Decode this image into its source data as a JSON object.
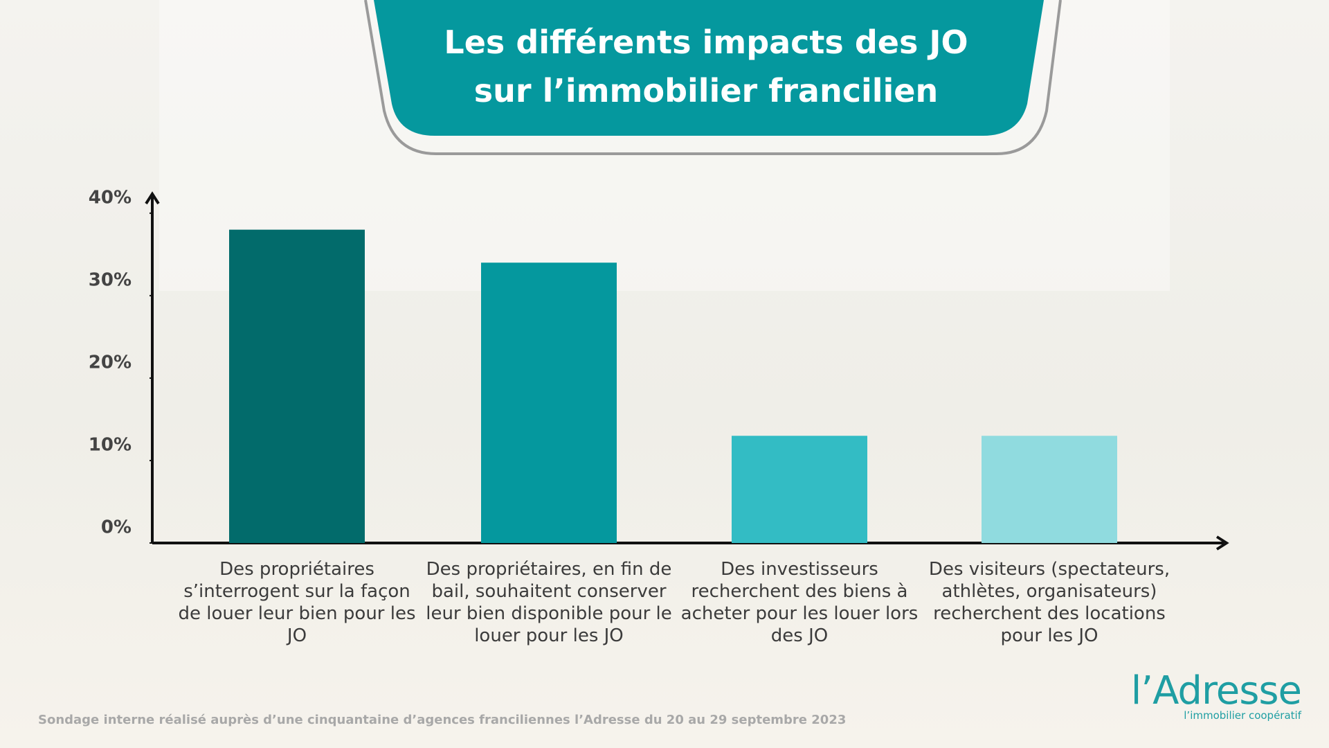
{
  "chart_data": {
    "type": "bar",
    "title": "Les différents impacts des JO sur l’immobilier francilien",
    "categories": [
      "Des propriétaires s’interrogent sur la façon de louer leur bien pour les JO",
      "Des propriétaires, en fin de bail, souhaitent conserver leur bien disponible pour le louer pour les JO",
      "Des investisseurs recherchent des biens à acheter pour les louer lors des JO",
      "Des visiteurs (spectateurs, athlètes, organisateurs) recherchent des locations pour les JO"
    ],
    "values": [
      38,
      34,
      13,
      13
    ],
    "colors": [
      "#026b6b",
      "#05989e",
      "#33bcc4",
      "#90dbdf"
    ],
    "ylim": [
      0,
      42
    ],
    "yticks": [
      {
        "value": 0,
        "label": "0%"
      },
      {
        "value": 10,
        "label": "10%"
      },
      {
        "value": 20,
        "label": "20%"
      },
      {
        "value": 30,
        "label": "30%"
      },
      {
        "value": 40,
        "label": "40%"
      }
    ],
    "grid": false,
    "footnote": "Sondage interne réalisé auprès d’une cinquantaine d’agences franciliennes l’Adresse du 20 au 29 septembre 2023",
    "logo": {
      "name": "l’Adresse",
      "tagline": "l’immobilier coopératif"
    }
  }
}
